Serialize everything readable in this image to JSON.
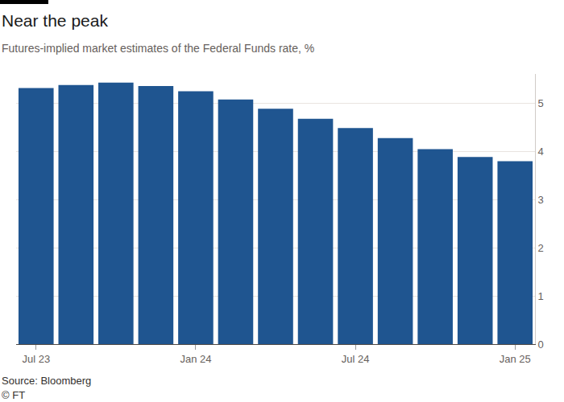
{
  "chart_data": {
    "type": "bar",
    "title": "Near the peak",
    "subtitle": "Futures-implied market estimates of the Federal Funds rate, %",
    "source": "Source: Bloomberg",
    "copyright": "© FT",
    "categories": [
      "Jul 23",
      null,
      null,
      null,
      "Jan 24",
      null,
      null,
      null,
      "Jul 24",
      null,
      null,
      null,
      "Jan 25"
    ],
    "values": [
      5.31,
      5.37,
      5.42,
      5.35,
      5.24,
      5.07,
      4.88,
      4.67,
      4.48,
      4.27,
      4.04,
      3.88,
      3.79
    ],
    "color": "#1f5590",
    "ylim": [
      0,
      5.6
    ],
    "yticks": [
      0,
      1,
      2,
      3,
      4,
      5
    ],
    "grid": true
  }
}
